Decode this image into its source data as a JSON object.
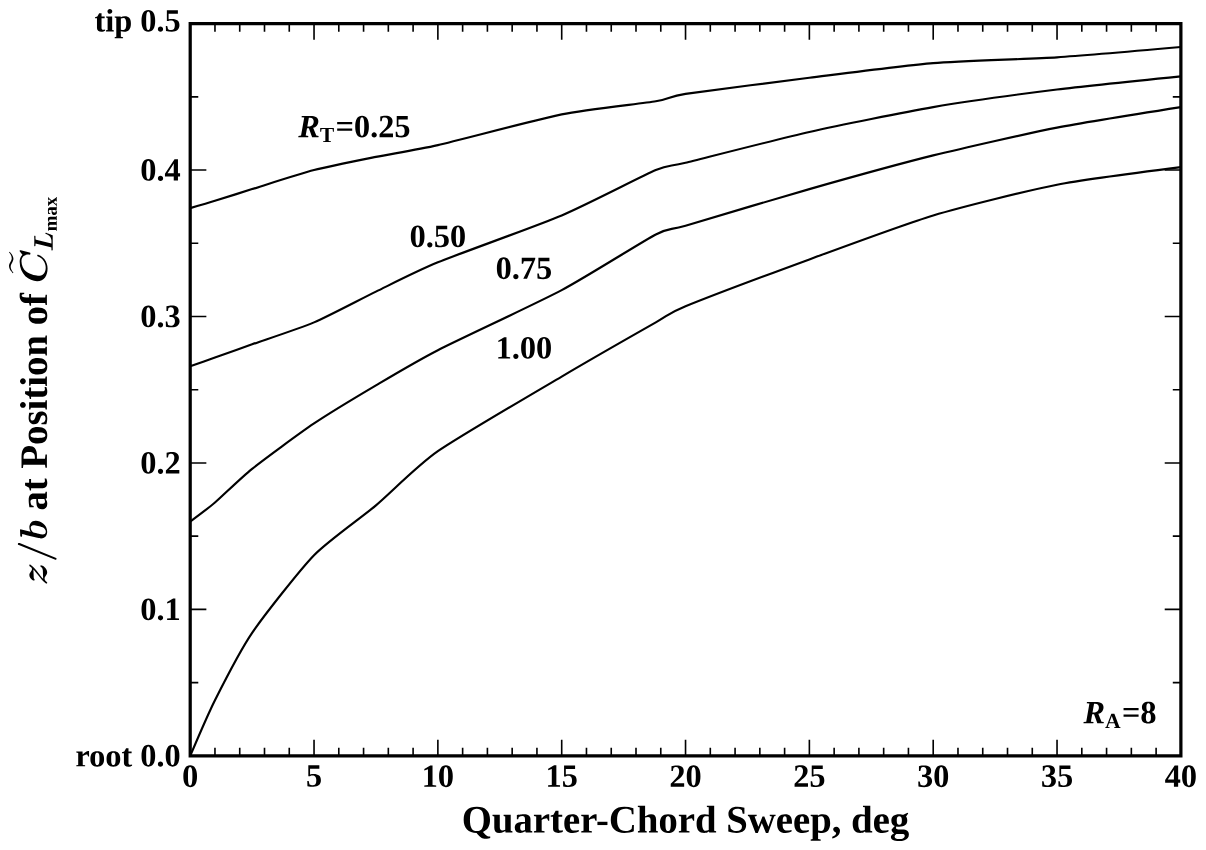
{
  "chart_data": {
    "type": "line",
    "xlabel": "Quarter-Chord Sweep, deg",
    "ylabel": "\\boldsymbol{z/b}\\mbox{ at Position of }\\boldsymbol{\\widetilde{C}_{L_{\\max}}}",
    "xlim": [
      0,
      40
    ],
    "ylim": [
      0,
      0.5
    ],
    "xticks": [
      0,
      5,
      10,
      15,
      20,
      25,
      30,
      35,
      40
    ],
    "yticks": [
      {
        "value": 0,
        "label": "root 0.0"
      },
      {
        "value": 0.1,
        "label": "0.1"
      },
      {
        "value": 0.2,
        "label": "0.2"
      },
      {
        "value": 0.3,
        "label": "0.3"
      },
      {
        "value": 0.4,
        "label": "0.4"
      },
      {
        "value": 0.5,
        "label": "tip 0.5"
      }
    ],
    "x": [
      0,
      1,
      2.5,
      5,
      7.5,
      10,
      15,
      18.8,
      20,
      25,
      30,
      35,
      40
    ],
    "series": [
      {
        "name": "*R*$_{T}$=0.25",
        "color": "#000000",
        "values": [
          0.374,
          0.379,
          0.387,
          0.4,
          0.409,
          0.417,
          0.438,
          0.447,
          0.452,
          0.463,
          0.473,
          0.477,
          0.484
        ]
      },
      {
        "name": "0.50",
        "color": "#000000",
        "values": [
          0.266,
          0.272,
          0.281,
          0.296,
          0.317,
          0.337,
          0.369,
          0.4,
          0.405,
          0.426,
          0.443,
          0.455,
          0.464
        ]
      },
      {
        "name": "0.75",
        "color": "#000000",
        "values": [
          0.16,
          0.173,
          0.196,
          0.227,
          0.253,
          0.277,
          0.318,
          0.356,
          0.362,
          0.387,
          0.41,
          0.429,
          0.443
        ]
      },
      {
        "name": "1.00",
        "color": "#000000",
        "values": [
          0.0,
          0.038,
          0.084,
          0.137,
          0.171,
          0.208,
          0.259,
          0.296,
          0.307,
          0.339,
          0.369,
          0.39,
          0.402
        ]
      }
    ],
    "annotations": [
      "*R*$_{A}$=8"
    ],
    "grid": false,
    "legend": false,
    "marker": "none",
    "line_style": "solid"
  }
}
